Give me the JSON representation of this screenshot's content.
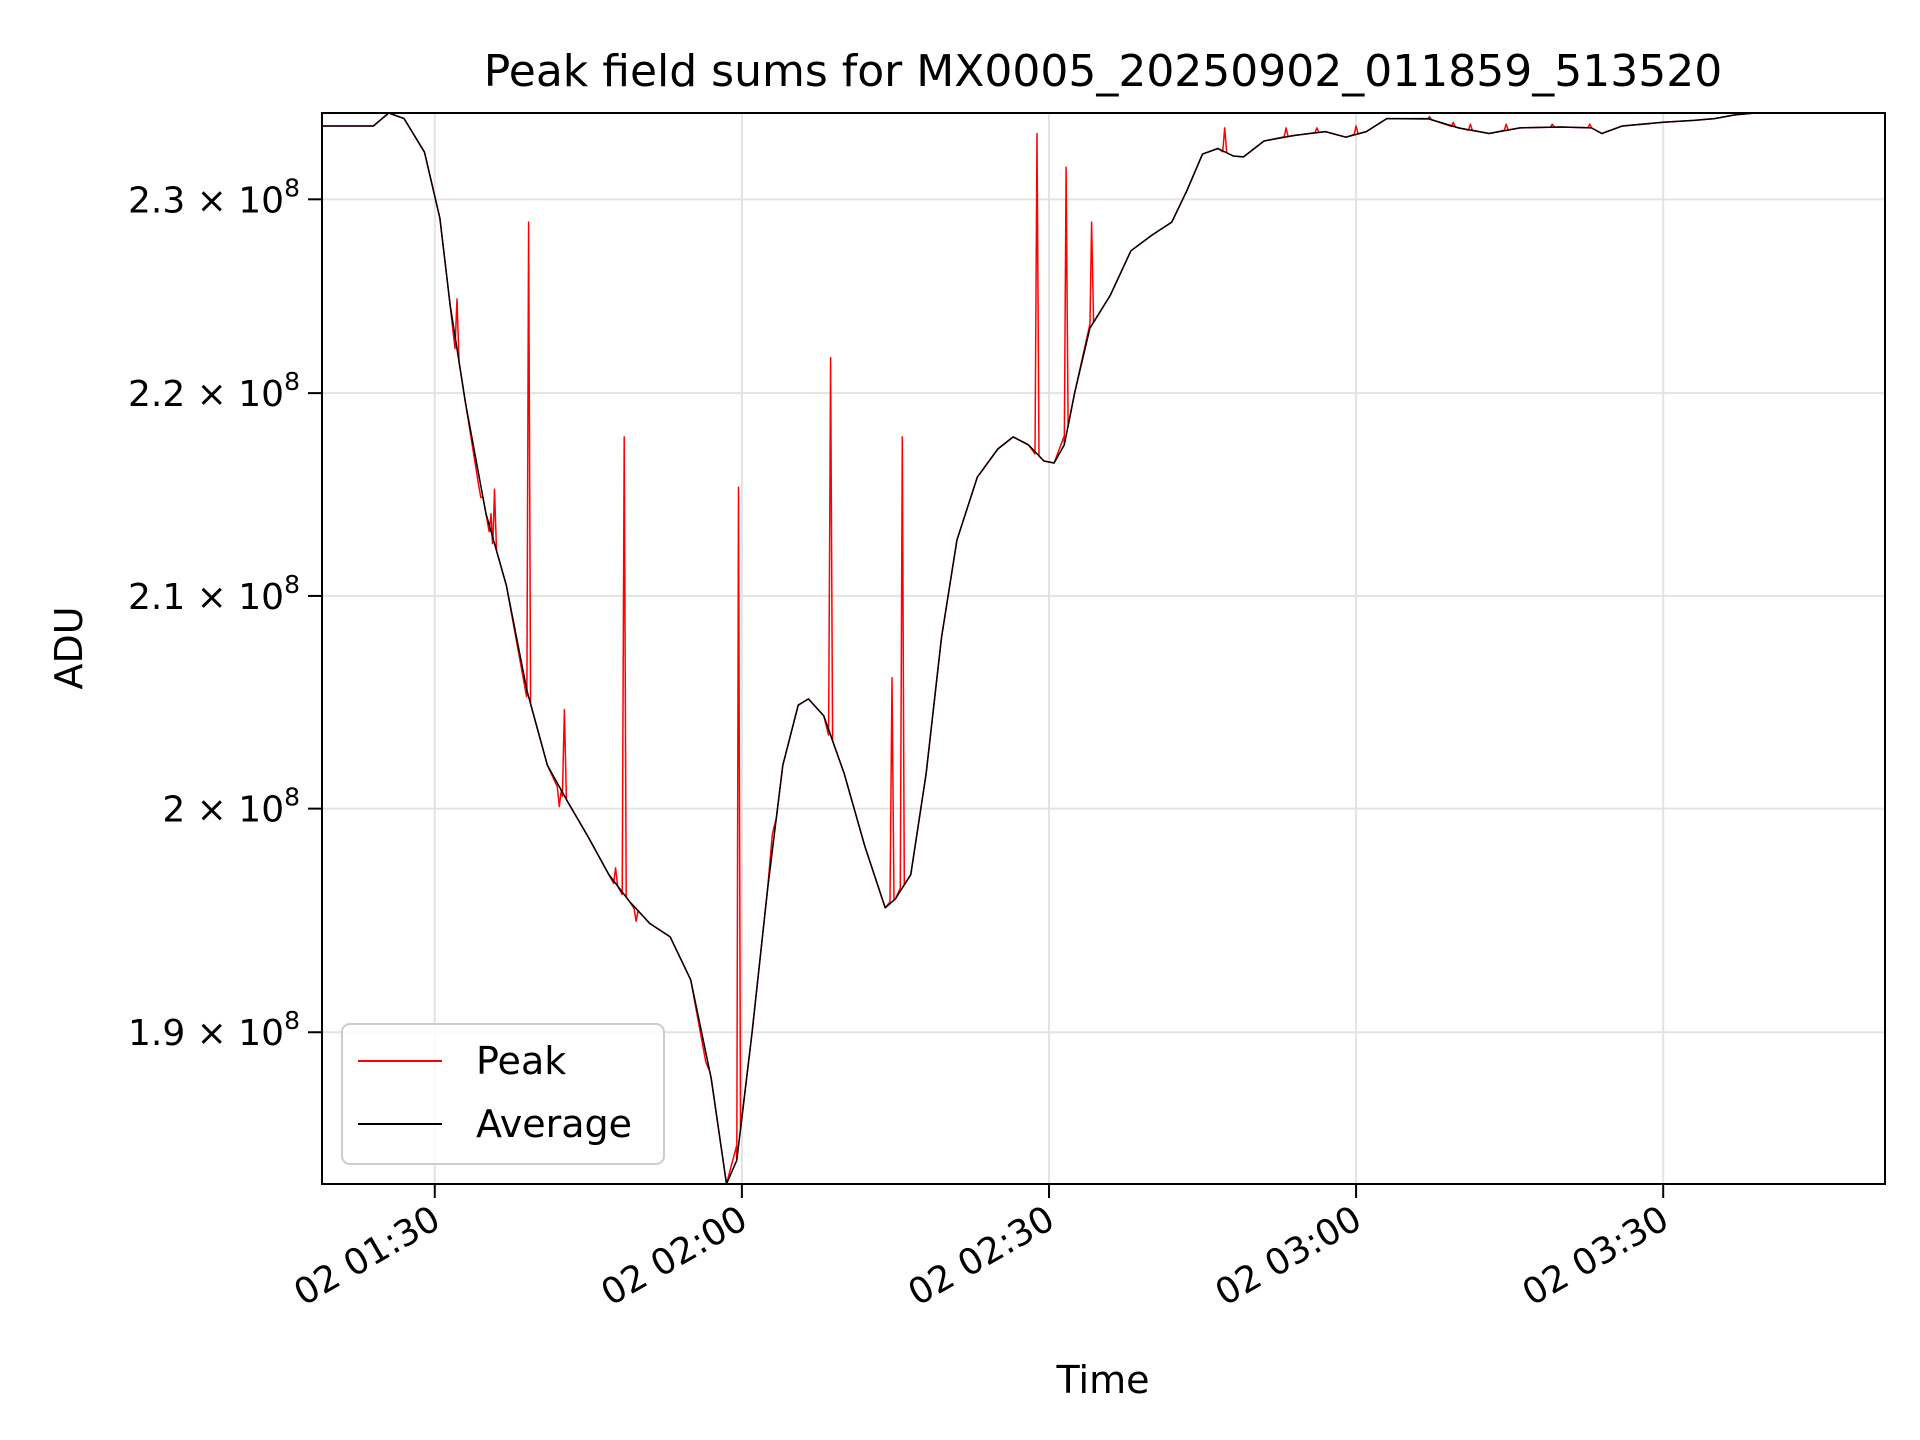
{
  "chart_data": {
    "type": "line",
    "title": "Peak field sums for MX0005_20250902_011859_513520",
    "xlabel": "Time",
    "ylabel": "ADU",
    "y_scale": "log",
    "xlim": [
      "2025-09-02 01:18:59",
      "2025-09-02 03:51:40"
    ],
    "ylim": [
      183500000,
      234600000
    ],
    "grid": true,
    "legend_position": "lower-left",
    "x_ticks": [
      {
        "time": "2025-09-02 01:30",
        "label": "02 01:30"
      },
      {
        "time": "2025-09-02 02:00",
        "label": "02 02:00"
      },
      {
        "time": "2025-09-02 02:30",
        "label": "02 02:30"
      },
      {
        "time": "2025-09-02 03:00",
        "label": "02 03:00"
      },
      {
        "time": "2025-09-02 03:30",
        "label": "02 03:30"
      }
    ],
    "y_ticks": [
      {
        "value": 190000000,
        "mantissa": "1.9",
        "exponent": "8"
      },
      {
        "value": 200000000,
        "mantissa": "2",
        "exponent": "8"
      },
      {
        "value": 210000000,
        "mantissa": "2.1",
        "exponent": "8"
      },
      {
        "value": 220000000,
        "mantissa": "2.2",
        "exponent": "8"
      },
      {
        "value": 230000000,
        "mantissa": "2.3",
        "exponent": "8"
      }
    ],
    "series": [
      {
        "name": "Average",
        "color": "#000000",
        "points": [
          [
            "2025-09-02 01:18:59",
            233900000
          ],
          [
            "2025-09-02 01:24:00",
            233900000
          ],
          [
            "2025-09-02 01:25:30",
            234600000
          ],
          [
            "2025-09-02 01:27:00",
            234300000
          ],
          [
            "2025-09-02 01:29:00",
            232500000
          ],
          [
            "2025-09-02 01:30:30",
            229000000
          ],
          [
            "2025-09-02 01:31:30",
            224500000
          ],
          [
            "2025-09-02 01:33:00",
            219500000
          ],
          [
            "2025-09-02 01:35:00",
            214000000
          ],
          [
            "2025-09-02 01:37:00",
            210500000
          ],
          [
            "2025-09-02 01:39:00",
            205500000
          ],
          [
            "2025-09-02 01:41:00",
            202000000
          ],
          [
            "2025-09-02 01:43:00",
            200300000
          ],
          [
            "2025-09-02 01:45:00",
            198700000
          ],
          [
            "2025-09-02 01:47:00",
            197000000
          ],
          [
            "2025-09-02 01:49:00",
            195800000
          ],
          [
            "2025-09-02 01:51:00",
            194800000
          ],
          [
            "2025-09-02 01:53:00",
            194200000
          ],
          [
            "2025-09-02 01:55:00",
            192300000
          ],
          [
            "2025-09-02 01:57:00",
            188000000
          ],
          [
            "2025-09-02 01:58:30",
            183500000
          ],
          [
            "2025-09-02 01:59:30",
            184500000
          ],
          [
            "2025-09-02 02:01:00",
            190000000
          ],
          [
            "2025-09-02 02:02:30",
            196300000
          ],
          [
            "2025-09-02 02:04:00",
            202000000
          ],
          [
            "2025-09-02 02:05:30",
            204800000
          ],
          [
            "2025-09-02 02:06:30",
            205100000
          ],
          [
            "2025-09-02 02:08:00",
            204300000
          ],
          [
            "2025-09-02 02:10:00",
            201600000
          ],
          [
            "2025-09-02 02:12:00",
            198300000
          ],
          [
            "2025-09-02 02:14:00",
            195500000
          ],
          [
            "2025-09-02 02:15:00",
            195900000
          ],
          [
            "2025-09-02 02:16:30",
            197000000
          ],
          [
            "2025-09-02 02:18:00",
            201600000
          ],
          [
            "2025-09-02 02:19:30",
            208000000
          ],
          [
            "2025-09-02 02:21:00",
            212700000
          ],
          [
            "2025-09-02 02:23:00",
            215800000
          ],
          [
            "2025-09-02 02:25:00",
            217200000
          ],
          [
            "2025-09-02 02:26:30",
            217800000
          ],
          [
            "2025-09-02 02:28:00",
            217400000
          ],
          [
            "2025-09-02 02:29:30",
            216600000
          ],
          [
            "2025-09-02 02:30:30",
            216500000
          ],
          [
            "2025-09-02 02:31:30",
            217400000
          ],
          [
            "2025-09-02 02:32:30",
            220000000
          ],
          [
            "2025-09-02 02:34:00",
            223300000
          ],
          [
            "2025-09-02 02:36:00",
            225000000
          ],
          [
            "2025-09-02 02:38:00",
            227300000
          ],
          [
            "2025-09-02 02:40:00",
            228100000
          ],
          [
            "2025-09-02 02:42:00",
            228800000
          ],
          [
            "2025-09-02 02:43:30",
            230500000
          ],
          [
            "2025-09-02 02:45:00",
            232400000
          ],
          [
            "2025-09-02 02:46:30",
            232700000
          ],
          [
            "2025-09-02 02:48:00",
            232300000
          ],
          [
            "2025-09-02 02:49:00",
            232250000
          ],
          [
            "2025-09-02 02:51:00",
            233100000
          ],
          [
            "2025-09-02 02:54:00",
            233400000
          ],
          [
            "2025-09-02 02:57:00",
            233600000
          ],
          [
            "2025-09-02 02:59:00",
            233300000
          ],
          [
            "2025-09-02 03:01:00",
            233600000
          ],
          [
            "2025-09-02 03:03:00",
            234300000
          ],
          [
            "2025-09-02 03:07:00",
            234300000
          ],
          [
            "2025-09-02 03:10:00",
            233800000
          ],
          [
            "2025-09-02 03:13:00",
            233500000
          ],
          [
            "2025-09-02 03:16:00",
            233800000
          ],
          [
            "2025-09-02 03:20:00",
            233850000
          ],
          [
            "2025-09-02 03:23:00",
            233800000
          ],
          [
            "2025-09-02 03:24:00",
            233500000
          ],
          [
            "2025-09-02 03:26:00",
            233900000
          ],
          [
            "2025-09-02 03:30:00",
            234100000
          ],
          [
            "2025-09-02 03:33:00",
            234200000
          ],
          [
            "2025-09-02 03:35:00",
            234300000
          ],
          [
            "2025-09-02 03:37:00",
            234500000
          ],
          [
            "2025-09-02 03:39:00",
            234600000
          ]
        ]
      },
      {
        "name": "Peak",
        "color": "#ff0000",
        "spikes": [
          [
            "2025-09-02 01:32:10",
            224800000
          ],
          [
            "2025-09-02 01:34:30",
            214800000
          ],
          [
            "2025-09-02 01:35:30",
            214000000
          ],
          [
            "2025-09-02 01:35:50",
            215200000
          ],
          [
            "2025-09-02 01:39:10",
            228800000
          ],
          [
            "2025-09-02 01:42:10",
            200100000
          ],
          [
            "2025-09-02 01:42:40",
            204600000
          ],
          [
            "2025-09-02 01:47:40",
            197300000
          ],
          [
            "2025-09-02 01:48:30",
            217800000
          ],
          [
            "2025-09-02 01:49:40",
            194900000
          ],
          [
            "2025-09-02 01:56:40",
            188500000
          ],
          [
            "2025-09-02 01:59:40",
            215300000
          ],
          [
            "2025-09-02 02:03:10",
            199200000
          ],
          [
            "2025-09-02 02:08:40",
            221800000
          ],
          [
            "2025-09-02 02:14:40",
            206100000
          ],
          [
            "2025-09-02 02:15:40",
            217800000
          ],
          [
            "2025-09-02 02:28:50",
            233500000
          ],
          [
            "2025-09-02 02:31:40",
            231700000
          ],
          [
            "2025-09-02 02:34:10",
            228800000
          ],
          [
            "2025-09-02 02:47:10",
            233800000
          ],
          [
            "2025-09-02 02:53:10",
            233800000
          ],
          [
            "2025-09-02 02:56:10",
            233800000
          ],
          [
            "2025-09-02 03:00:00",
            233900000
          ],
          [
            "2025-09-02 03:07:10",
            234400000
          ],
          [
            "2025-09-02 03:09:30",
            234100000
          ],
          [
            "2025-09-02 03:11:10",
            234000000
          ],
          [
            "2025-09-02 03:14:40",
            234000000
          ],
          [
            "2025-09-02 03:19:10",
            234000000
          ],
          [
            "2025-09-02 03:22:50",
            234000000
          ]
        ]
      }
    ]
  }
}
